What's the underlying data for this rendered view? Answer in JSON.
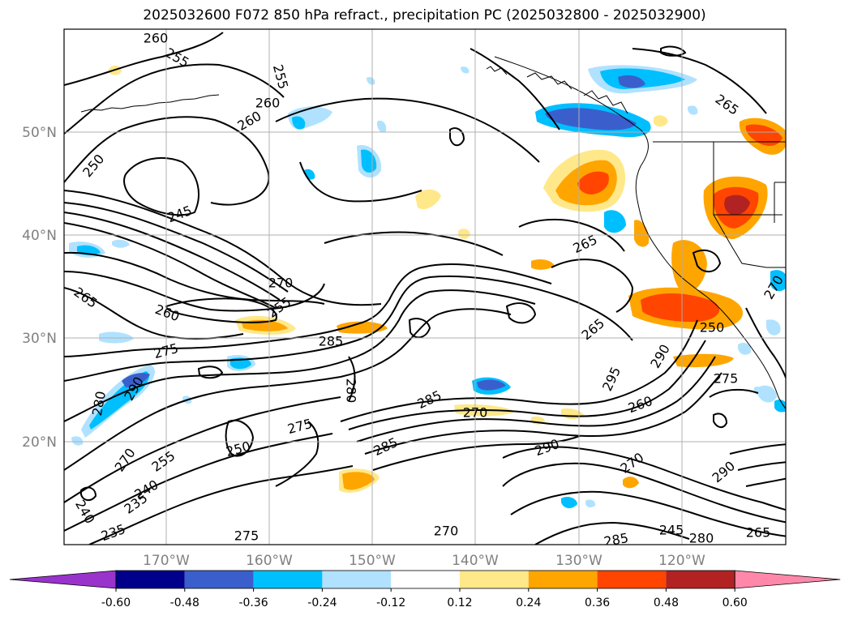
{
  "title": "2025032600 F072 850 hPa refract., precipitation PC (2025032800 - 2025032900)",
  "map": {
    "latitude_labels": [
      "50°N",
      "40°N",
      "30°N",
      "20°N"
    ],
    "longitude_labels": [
      "170°W",
      "160°W",
      "150°W",
      "140°W",
      "130°W",
      "120°W"
    ],
    "contour_labels": [
      "260",
      "255",
      "255",
      "260",
      "260",
      "265",
      "265",
      "250",
      "245",
      "265",
      "270",
      "260",
      "255",
      "275",
      "285",
      "280",
      "290",
      "280",
      "285",
      "270",
      "275",
      "270",
      "255",
      "250",
      "240",
      "240",
      "235",
      "235",
      "285",
      "275",
      "270",
      "285",
      "290",
      "270",
      "295",
      "260",
      "290",
      "290",
      "275",
      "265",
      "250",
      "245",
      "280",
      "265",
      "270"
    ]
  },
  "colorbar": {
    "tick_labels": [
      "-0.60",
      "-0.48",
      "-0.36",
      "-0.24",
      "-0.12",
      "0.12",
      "0.24",
      "0.36",
      "0.48",
      "0.60"
    ],
    "colors": [
      "#9933cc",
      "#00008b",
      "#3a5fcd",
      "#00bfff",
      "#b0e2ff",
      "#ffffff",
      "#ffe88a",
      "#ffa500",
      "#ff4500",
      "#b22222",
      "#ff88aa"
    ]
  }
}
